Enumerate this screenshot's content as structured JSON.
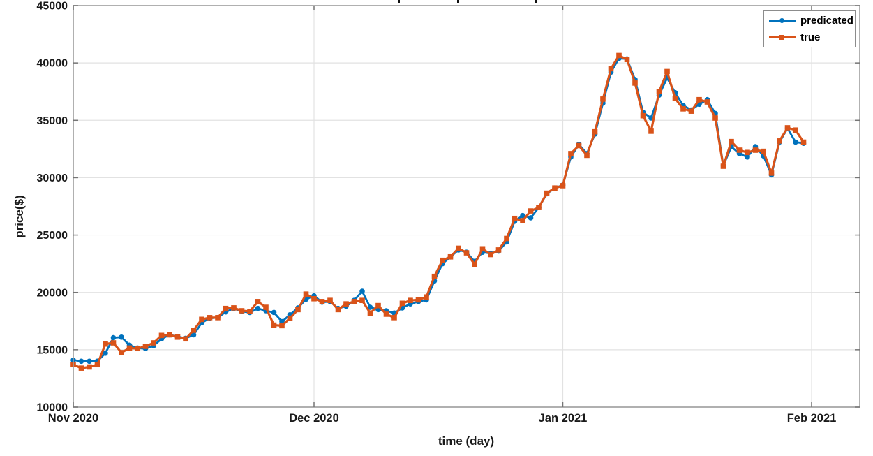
{
  "chart_data": {
    "type": "line",
    "title": "",
    "xlabel": "time (day)",
    "ylabel": "price($)",
    "grid": true,
    "legend_position": "top-right",
    "x_unit": "day index from Nov 1 2020, one point per day",
    "xlim_days": [
      0,
      98
    ],
    "ylim": [
      10000,
      45000
    ],
    "y_ticks": [
      10000,
      15000,
      20000,
      25000,
      30000,
      35000,
      40000,
      45000
    ],
    "x_ticks": [
      {
        "day": 0,
        "label": "Nov 2020"
      },
      {
        "day": 30,
        "label": "Dec 2020"
      },
      {
        "day": 61,
        "label": "Jan 2021"
      },
      {
        "day": 92,
        "label": "Feb 2021"
      }
    ],
    "series": [
      {
        "name": "predicated",
        "color": "#0072BD",
        "marker": "circle",
        "values": [
          14100,
          14000,
          14000,
          14000,
          14700,
          16050,
          16100,
          15400,
          15150,
          15100,
          15350,
          15950,
          16300,
          16150,
          16000,
          16300,
          17350,
          17750,
          17800,
          18300,
          18600,
          18350,
          18250,
          18600,
          18400,
          18250,
          17450,
          18050,
          18650,
          19400,
          19700,
          19150,
          19200,
          18600,
          18800,
          19300,
          20100,
          18700,
          18500,
          18400,
          18200,
          18650,
          19000,
          19200,
          19350,
          21000,
          22500,
          23100,
          23700,
          23500,
          22700,
          23500,
          23400,
          23600,
          24400,
          26200,
          26700,
          26500,
          27400,
          28600,
          29100,
          29350,
          31800,
          32900,
          32100,
          33800,
          36500,
          39200,
          40400,
          40350,
          38550,
          35700,
          35200,
          37200,
          38700,
          37400,
          36300,
          35900,
          36400,
          36800,
          35600,
          31050,
          32700,
          32100,
          31800,
          32700,
          31900,
          30250,
          33100,
          34300,
          33100,
          33000
        ]
      },
      {
        "name": "true",
        "color": "#D95319",
        "marker": "square",
        "values": [
          13700,
          13400,
          13500,
          13700,
          15500,
          15600,
          14750,
          15150,
          15100,
          15300,
          15600,
          16250,
          16300,
          16100,
          15950,
          16700,
          17650,
          17800,
          17800,
          18600,
          18650,
          18400,
          18350,
          19200,
          18700,
          17150,
          17100,
          17750,
          18500,
          19850,
          19450,
          19200,
          19300,
          18500,
          19000,
          19200,
          19300,
          18200,
          18850,
          18100,
          17800,
          19050,
          19300,
          19350,
          19600,
          21400,
          22800,
          23100,
          23850,
          23450,
          22450,
          23800,
          23300,
          23700,
          24700,
          26450,
          26250,
          27100,
          27400,
          28650,
          29100,
          29300,
          32100,
          32800,
          31950,
          34000,
          36850,
          39500,
          40650,
          40300,
          38250,
          35400,
          34050,
          37500,
          39250,
          36900,
          36000,
          35800,
          36800,
          36600,
          35200,
          31000,
          33150,
          32400,
          32200,
          32400,
          32300,
          30400,
          33200,
          34350,
          34150,
          33100
        ]
      }
    ],
    "style": {
      "axis_box_color": "#9e9e9e",
      "grid_color": "#e2e2e2",
      "tick_mark_color": "#757575",
      "tick_label_color": "#1a1a1a",
      "background": "#ffffff"
    }
  }
}
